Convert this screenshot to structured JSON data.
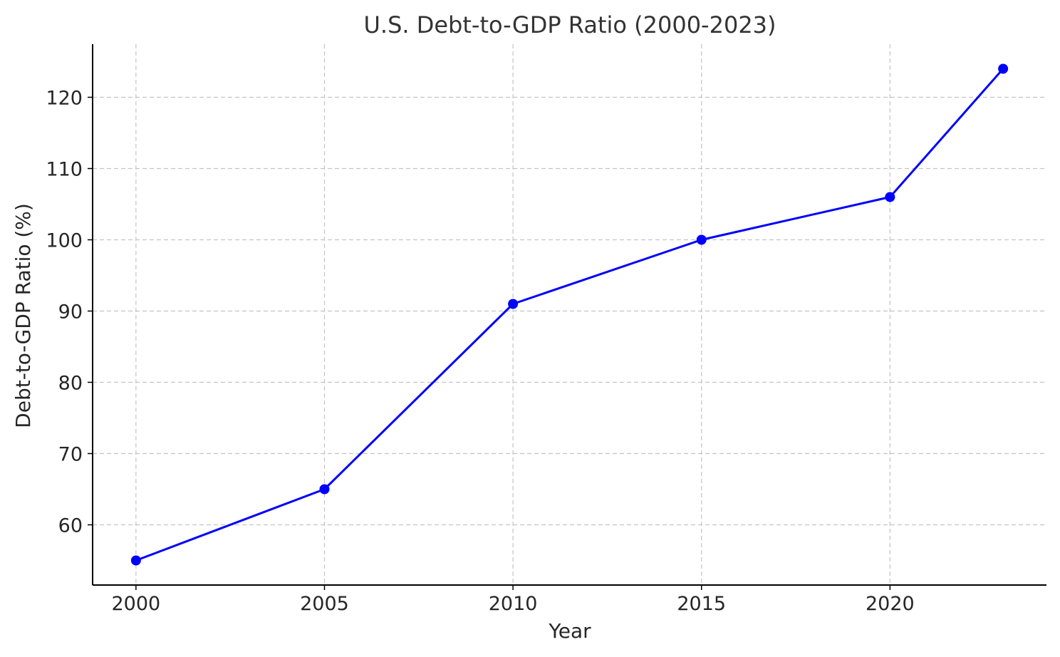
{
  "chart_data": {
    "type": "line",
    "title": "U.S. Debt-to-GDP Ratio (2000-2023)",
    "xlabel": "Year",
    "ylabel": "Debt-to-GDP Ratio (%)",
    "x": [
      2000,
      2005,
      2010,
      2015,
      2020,
      2023
    ],
    "series": [
      {
        "values": [
          55,
          65,
          91,
          100,
          106,
          124
        ],
        "color": "#0000ff",
        "marker": "circle"
      }
    ],
    "xticks": [
      2000,
      2005,
      2010,
      2015,
      2020
    ],
    "yticks": [
      60,
      70,
      80,
      90,
      100,
      110,
      120
    ],
    "xlim": [
      1998.85,
      2024.15
    ],
    "ylim": [
      51.55,
      127.45
    ],
    "grid": true,
    "grid_style": "dashed",
    "legend": "none"
  }
}
